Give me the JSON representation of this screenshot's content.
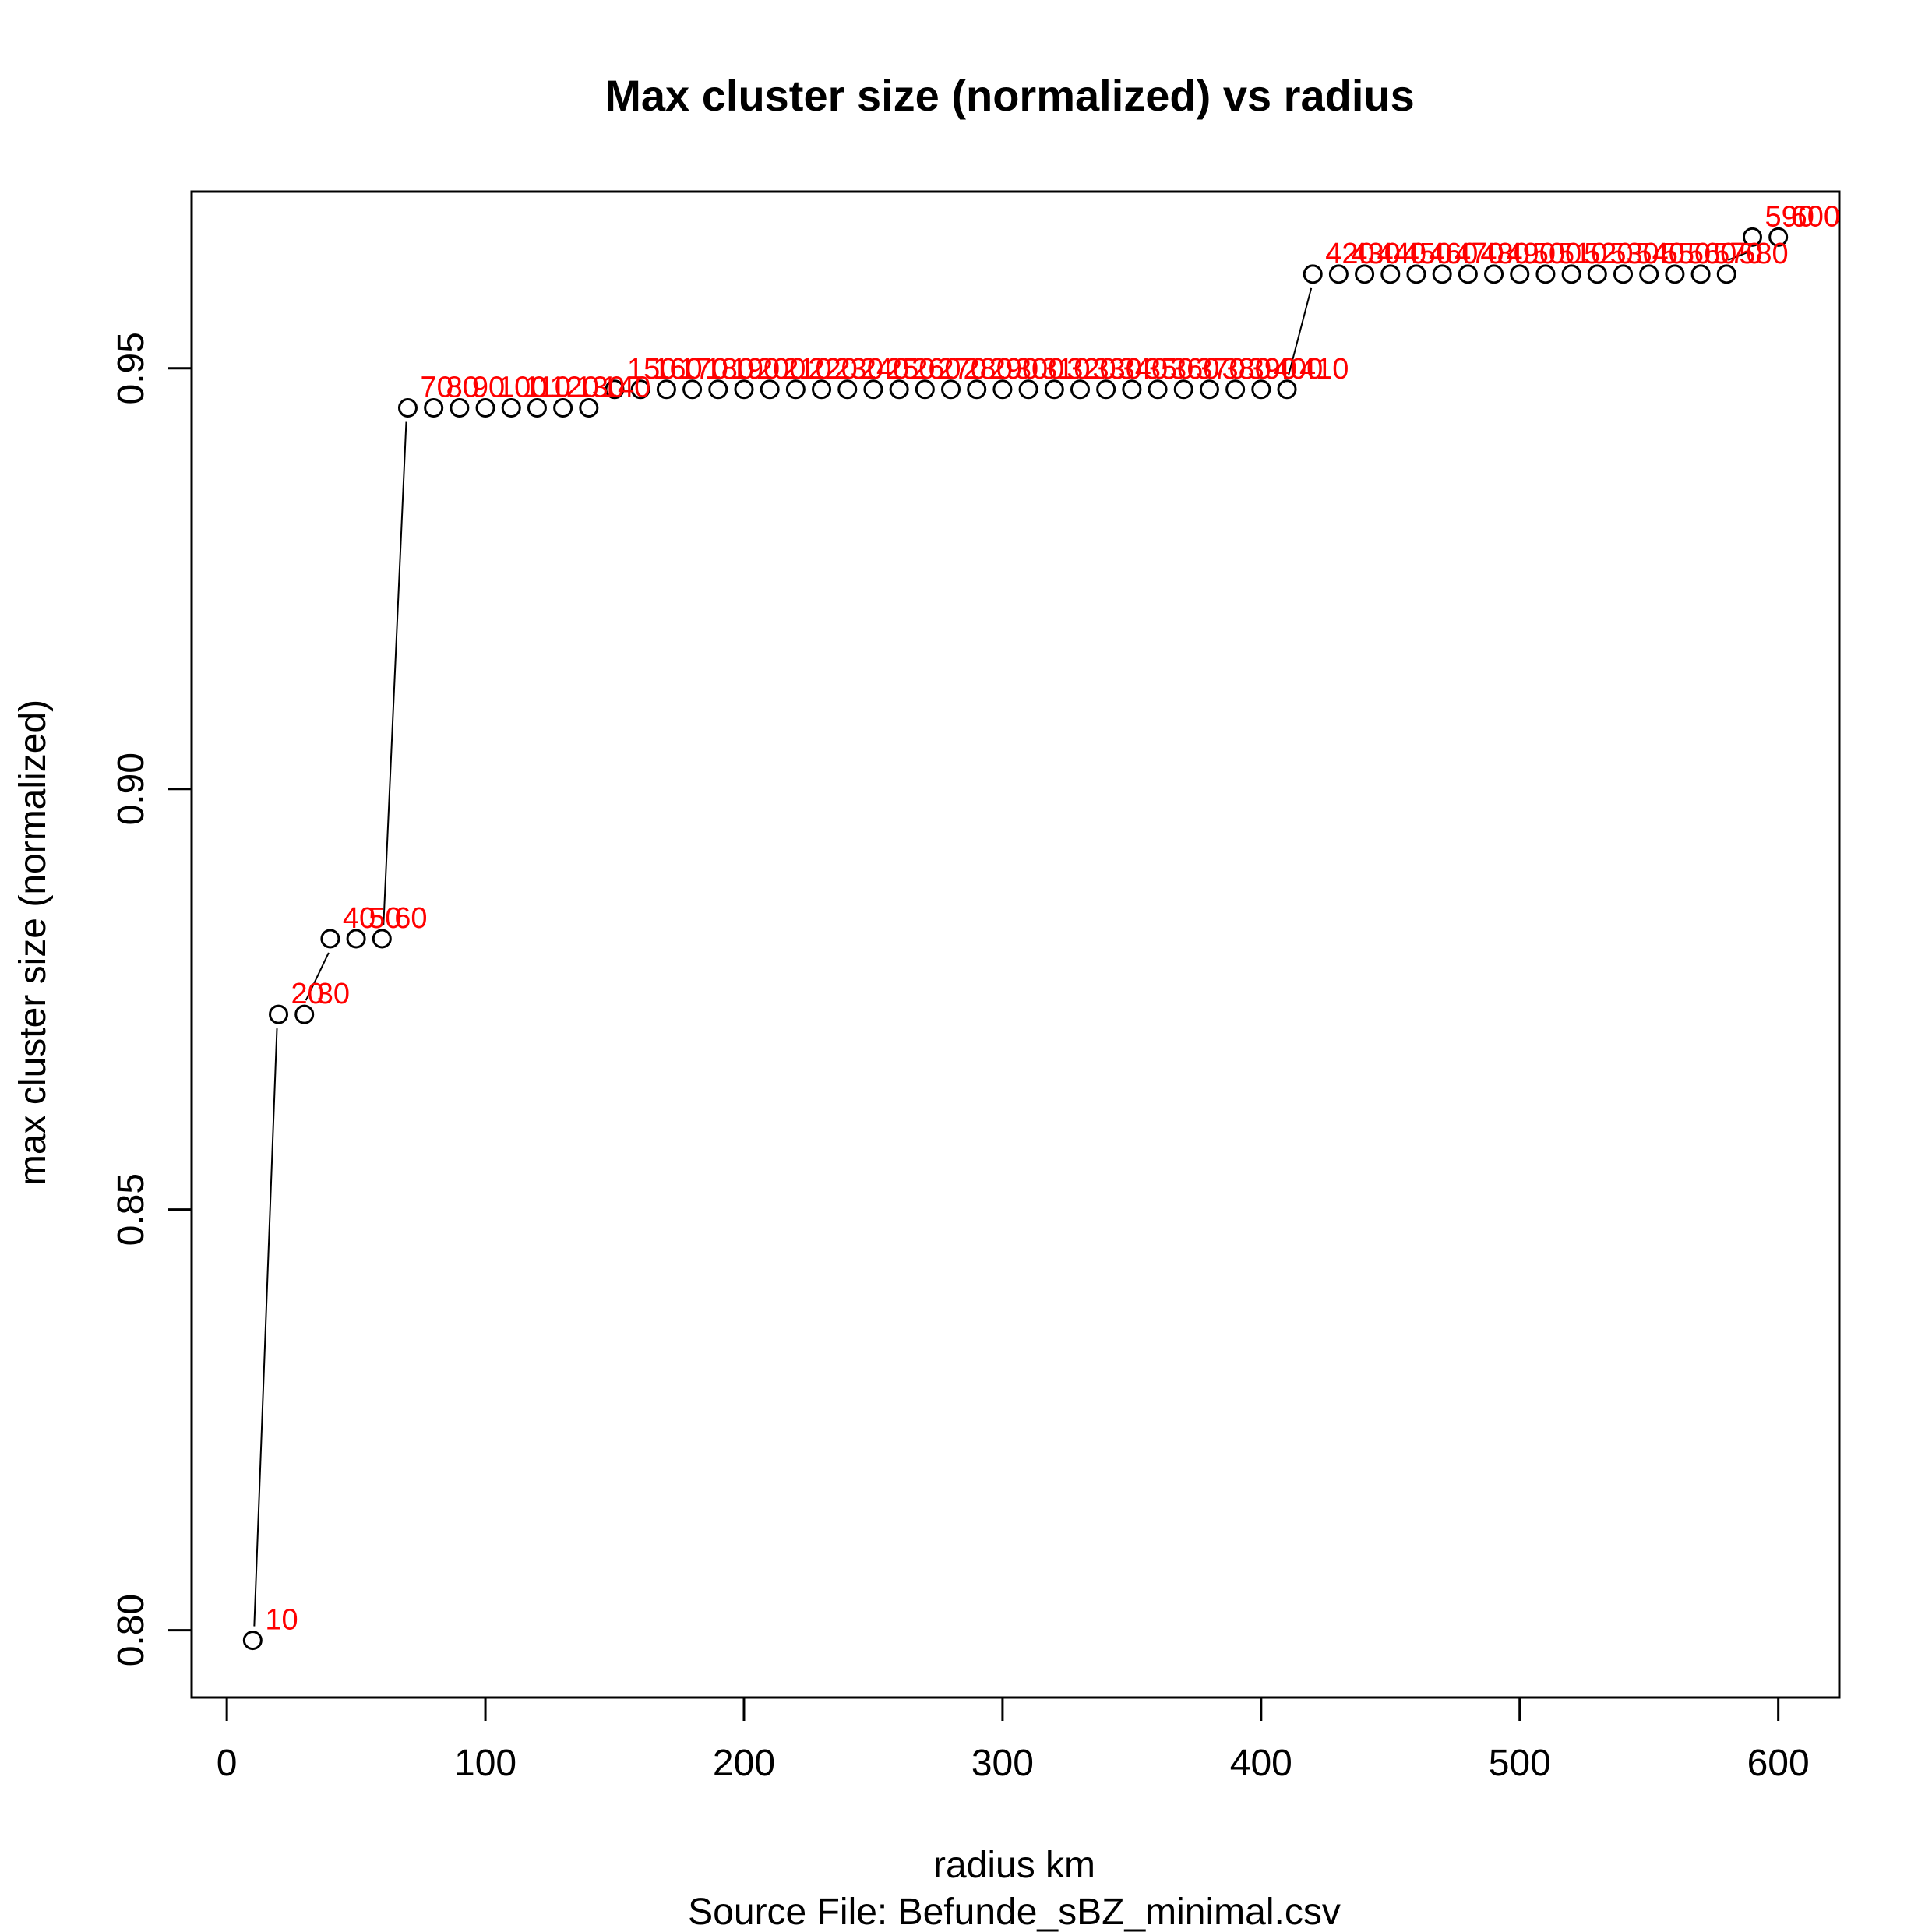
{
  "chart_data": {
    "type": "scatter",
    "title": "Max cluster size (normalized) vs radius",
    "xlabel": "radius km",
    "ylabel": "max cluster size (normalized)",
    "subtitle": "Source File:  Befunde_sBZ_minimal.csv",
    "xlim": [
      -13.6,
      623.6
    ],
    "ylim": [
      0.792,
      0.971
    ],
    "x_ticks": [
      0,
      100,
      200,
      300,
      400,
      500,
      600
    ],
    "x_tick_labels": [
      "0",
      "100",
      "200",
      "300",
      "400",
      "500",
      "600"
    ],
    "y_ticks": [
      0.8,
      0.85,
      0.9,
      0.95
    ],
    "y_tick_labels": [
      "0.80",
      "0.85",
      "0.90",
      "0.95"
    ],
    "grid": false,
    "point_style": "open-circle",
    "colors": {
      "points": "#000000",
      "labels": "#ff0000",
      "frame": "#000000",
      "leader_lines": "#000000"
    },
    "points": [
      {
        "x": 10,
        "y": 0.7988,
        "label": "10"
      },
      {
        "x": 20,
        "y": 0.8732,
        "label": "20"
      },
      {
        "x": 30,
        "y": 0.8732,
        "label": "30"
      },
      {
        "x": 40,
        "y": 0.8822,
        "label": "40"
      },
      {
        "x": 50,
        "y": 0.8822,
        "label": "50"
      },
      {
        "x": 60,
        "y": 0.8822,
        "label": "60"
      },
      {
        "x": 70,
        "y": 0.9453,
        "label": "70"
      },
      {
        "x": 80,
        "y": 0.9453,
        "label": "80"
      },
      {
        "x": 90,
        "y": 0.9453,
        "label": "90"
      },
      {
        "x": 100,
        "y": 0.9453,
        "label": "100"
      },
      {
        "x": 110,
        "y": 0.9453,
        "label": "110"
      },
      {
        "x": 120,
        "y": 0.9453,
        "label": "120"
      },
      {
        "x": 130,
        "y": 0.9453,
        "label": "130"
      },
      {
        "x": 140,
        "y": 0.9453,
        "label": "140"
      },
      {
        "x": 150,
        "y": 0.9475,
        "label": "150"
      },
      {
        "x": 160,
        "y": 0.9475,
        "label": "160"
      },
      {
        "x": 170,
        "y": 0.9475,
        "label": "170"
      },
      {
        "x": 180,
        "y": 0.9475,
        "label": "180"
      },
      {
        "x": 190,
        "y": 0.9475,
        "label": "190"
      },
      {
        "x": 200,
        "y": 0.9475,
        "label": "200"
      },
      {
        "x": 210,
        "y": 0.9475,
        "label": "210"
      },
      {
        "x": 220,
        "y": 0.9475,
        "label": "220"
      },
      {
        "x": 230,
        "y": 0.9475,
        "label": "230"
      },
      {
        "x": 240,
        "y": 0.9475,
        "label": "240"
      },
      {
        "x": 250,
        "y": 0.9475,
        "label": "250"
      },
      {
        "x": 260,
        "y": 0.9475,
        "label": "260"
      },
      {
        "x": 270,
        "y": 0.9475,
        "label": "270"
      },
      {
        "x": 280,
        "y": 0.9475,
        "label": "280"
      },
      {
        "x": 290,
        "y": 0.9475,
        "label": "290"
      },
      {
        "x": 300,
        "y": 0.9475,
        "label": "300"
      },
      {
        "x": 310,
        "y": 0.9475,
        "label": "310"
      },
      {
        "x": 320,
        "y": 0.9475,
        "label": "320"
      },
      {
        "x": 330,
        "y": 0.9475,
        "label": "330"
      },
      {
        "x": 340,
        "y": 0.9475,
        "label": "340"
      },
      {
        "x": 350,
        "y": 0.9475,
        "label": "350"
      },
      {
        "x": 360,
        "y": 0.9475,
        "label": "360"
      },
      {
        "x": 370,
        "y": 0.9475,
        "label": "370"
      },
      {
        "x": 380,
        "y": 0.9475,
        "label": "380"
      },
      {
        "x": 390,
        "y": 0.9475,
        "label": "390"
      },
      {
        "x": 400,
        "y": 0.9475,
        "label": "400"
      },
      {
        "x": 410,
        "y": 0.9475,
        "label": "410"
      },
      {
        "x": 420,
        "y": 0.9612,
        "label": "420"
      },
      {
        "x": 430,
        "y": 0.9612,
        "label": "430"
      },
      {
        "x": 440,
        "y": 0.9612,
        "label": "440"
      },
      {
        "x": 450,
        "y": 0.9612,
        "label": "450"
      },
      {
        "x": 460,
        "y": 0.9612,
        "label": "460"
      },
      {
        "x": 470,
        "y": 0.9612,
        "label": "470"
      },
      {
        "x": 480,
        "y": 0.9612,
        "label": "480"
      },
      {
        "x": 490,
        "y": 0.9612,
        "label": "490"
      },
      {
        "x": 500,
        "y": 0.9612,
        "label": "500"
      },
      {
        "x": 510,
        "y": 0.9612,
        "label": "510"
      },
      {
        "x": 520,
        "y": 0.9612,
        "label": "520"
      },
      {
        "x": 530,
        "y": 0.9612,
        "label": "530"
      },
      {
        "x": 540,
        "y": 0.9612,
        "label": "540"
      },
      {
        "x": 550,
        "y": 0.9612,
        "label": "550"
      },
      {
        "x": 560,
        "y": 0.9612,
        "label": "560"
      },
      {
        "x": 570,
        "y": 0.9612,
        "label": "570"
      },
      {
        "x": 580,
        "y": 0.9612,
        "label": "580"
      },
      {
        "x": 590,
        "y": 0.9656,
        "label": "590"
      },
      {
        "x": 600,
        "y": 0.9656,
        "label": "600"
      }
    ]
  }
}
